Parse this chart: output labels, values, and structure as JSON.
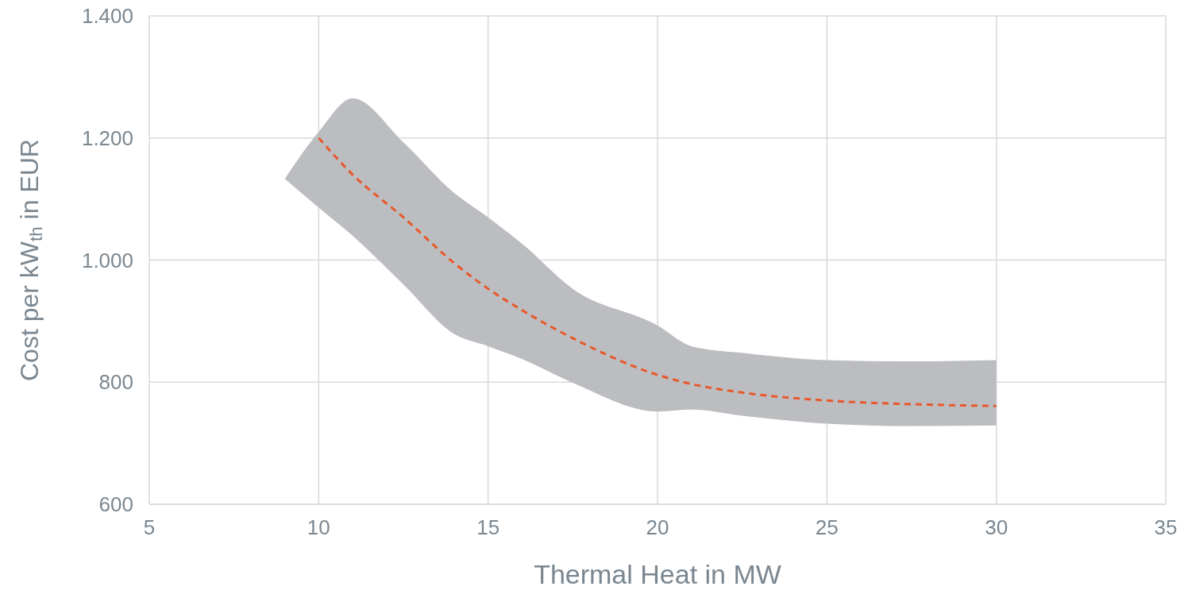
{
  "chart_data": {
    "type": "line",
    "xlabel": "Thermal Heat in MW",
    "ylabel": "Cost per kW$_{th}$ in EUR",
    "xlim": [
      5,
      35
    ],
    "xticks": [
      5,
      10,
      15,
      20,
      25,
      30,
      35
    ],
    "ylim": [
      600,
      1400
    ],
    "yticks": [
      600,
      800,
      {
        "value": 1000,
        "label": "1.000"
      },
      {
        "value": 1200,
        "label": "1.200"
      },
      {
        "value": 1400,
        "label": "1.400"
      }
    ],
    "grid": true,
    "legend": false,
    "marker": "none",
    "line_style": "dashed",
    "series": [
      {
        "color": "#e8582a",
        "x": [
          9,
          10,
          11,
          12.5,
          14,
          15,
          16,
          17.5,
          20,
          21,
          22.5,
          25,
          27.5,
          30
        ],
        "values": [
          null,
          1200,
          1140,
          1070,
          995,
          953,
          918,
          872,
          812,
          797,
          783,
          770,
          764,
          761
        ],
        "lower": [
          1133,
          1086,
          1040,
          960,
          879,
          859,
          838,
          799,
          752,
          755,
          745,
          732,
          728,
          729
        ],
        "upper": [
          1133,
          1210,
          1265,
          1193,
          1110,
          1070,
          1027,
          953,
          893,
          859,
          848,
          836,
          834,
          836
        ]
      }
    ]
  }
}
